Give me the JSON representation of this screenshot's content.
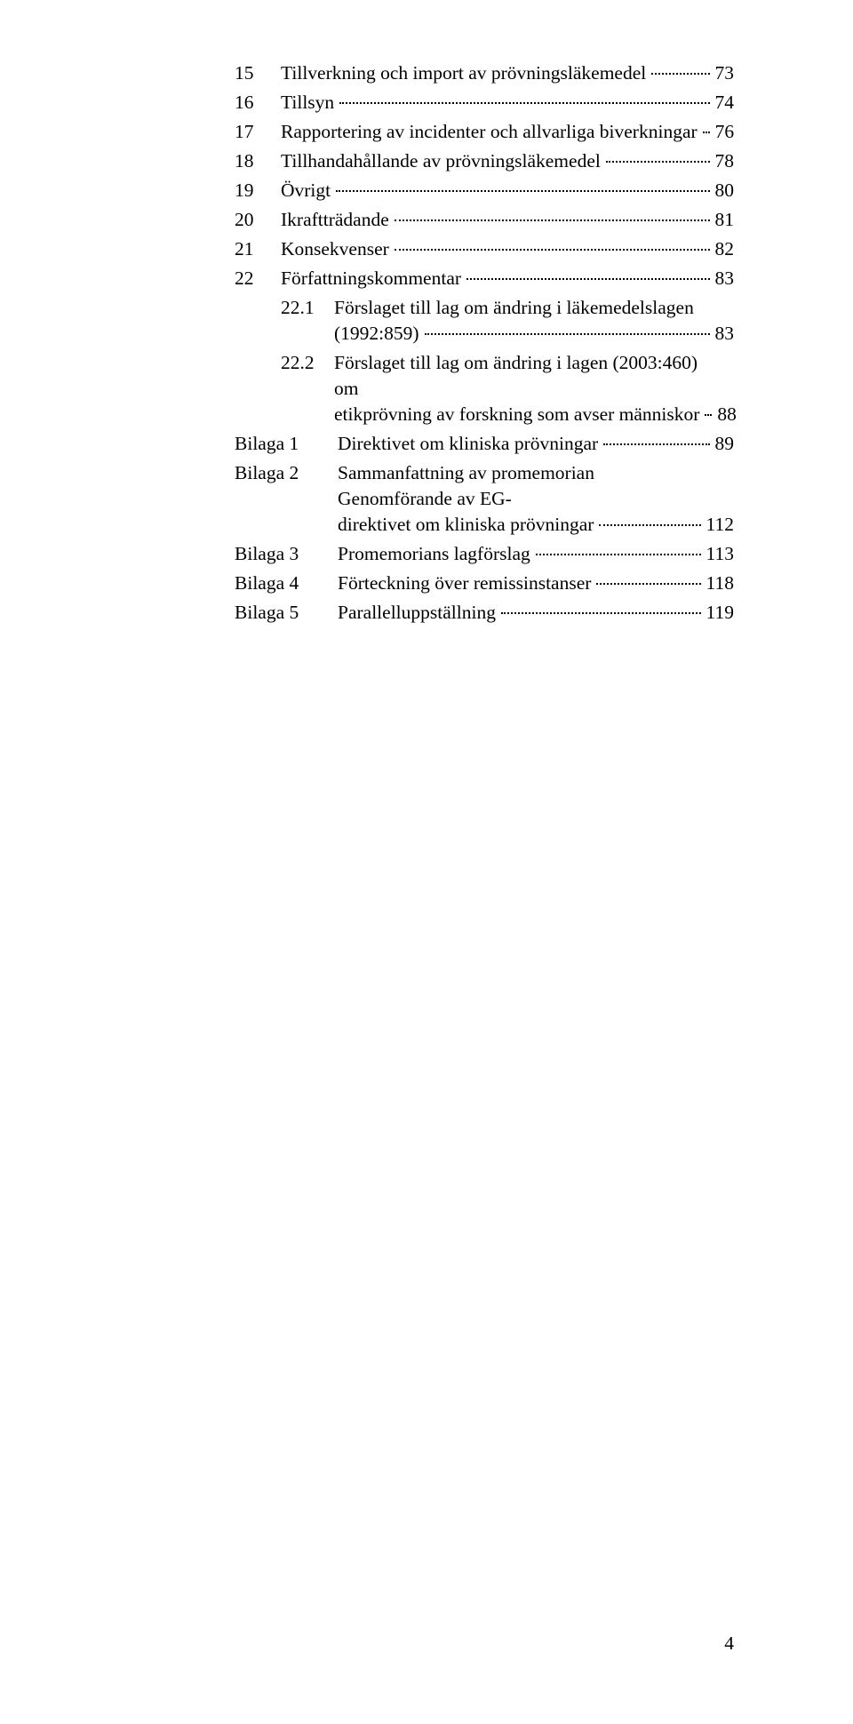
{
  "text_color": "#000000",
  "background_color": "#ffffff",
  "font_family": "Times New Roman",
  "font_size_pt": 16,
  "page_number": "4",
  "toc": {
    "main": [
      {
        "num": "15",
        "label": "Tillverkning och import av prövningsläkemedel",
        "page": "73"
      },
      {
        "num": "16",
        "label": "Tillsyn",
        "page": "74"
      },
      {
        "num": "17",
        "label": "Rapportering av incidenter och allvarliga biverkningar",
        "page": "76"
      },
      {
        "num": "18",
        "label": "Tillhandahållande av prövningsläkemedel",
        "page": "78"
      },
      {
        "num": "19",
        "label": "Övrigt",
        "page": "80"
      },
      {
        "num": "20",
        "label": "Ikraftträdande",
        "page": "81"
      },
      {
        "num": "21",
        "label": "Konsekvenser",
        "page": "82"
      },
      {
        "num": "22",
        "label": "Författningskommentar",
        "page": "83"
      }
    ],
    "sub": [
      {
        "parent": "",
        "subnum": "22.1",
        "line1": "Förslaget till lag om ändring i läkemedelslagen",
        "line2": "(1992:859)",
        "page": "83"
      },
      {
        "parent": "",
        "subnum": "22.2",
        "line1": "Förslaget till lag om ändring i lagen (2003:460) om",
        "line2": "etikprövning av forskning som avser människor",
        "page": "88"
      }
    ],
    "bilagor": [
      {
        "num": "Bilaga 1",
        "label": "Direktivet om kliniska prövningar",
        "page": "89"
      },
      {
        "num": "Bilaga 2",
        "line1": "Sammanfattning av promemorian Genomförande av EG-",
        "line2": "direktivet om kliniska prövningar",
        "page": "112"
      },
      {
        "num": "Bilaga 3",
        "label": "Promemorians lagförslag",
        "page": "113"
      },
      {
        "num": "Bilaga 4",
        "label": "Förteckning över remissinstanser",
        "page": "118"
      },
      {
        "num": "Bilaga 5",
        "label": "Parallelluppställning",
        "page": "119"
      }
    ]
  }
}
